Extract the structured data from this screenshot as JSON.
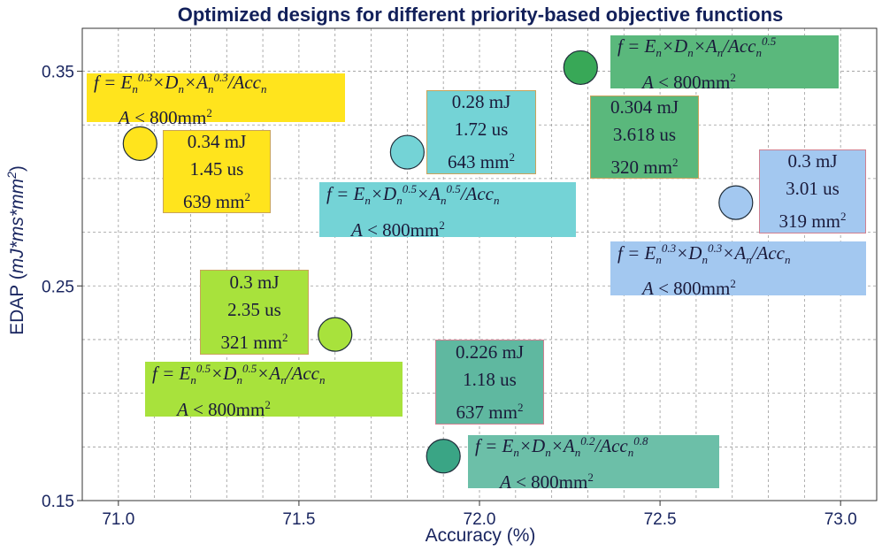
{
  "chart_data": {
    "type": "scatter",
    "title": "Optimized designs for different priority-based objective functions",
    "xlabel": "Accuracy (%)",
    "ylabel": "EDAP (mJ*ms*mm²)",
    "ylabel_prefix": "EDAP (",
    "ylabel_units": "mJ*ms*mm",
    "ylabel_sup": "2",
    "ylabel_suffix": ")",
    "xlim": [
      70.9,
      73.1
    ],
    "ylim": [
      0.15,
      0.37
    ],
    "xticks": [
      71.0,
      71.5,
      72.0,
      72.5,
      73.0
    ],
    "xtick_labels": [
      "71.0",
      "71.5",
      "72.0",
      "72.5",
      "73.0"
    ],
    "yticks": [
      0.15,
      0.25,
      0.35
    ],
    "ytick_labels": [
      "0.15",
      "0.25",
      "0.35"
    ],
    "grid": true,
    "constraint_label": "A < 800mm",
    "constraint_sup": "2",
    "points": [
      {
        "x": 71.06,
        "y": 0.3163,
        "color": "#ffe41d",
        "energy": "0.34 mJ",
        "latency": "1.45 us",
        "area": "639 mm",
        "objective": "f = En^0.3 × Dn × An^0.3 / Accn"
      },
      {
        "x": 71.8,
        "y": 0.3123,
        "color": "#74d3d6",
        "energy": "0.28 mJ",
        "latency": "1.72 us",
        "area": "643 mm",
        "objective": "f = En × Dn^0.5 × An^0.5 / Accn"
      },
      {
        "x": 72.28,
        "y": 0.3517,
        "color": "#38a857",
        "energy": "0.304 mJ",
        "latency": "3.618 us",
        "area": "320 mm",
        "objective": "f = En × Dn × An / Accn^0.5"
      },
      {
        "x": 72.71,
        "y": 0.2888,
        "color": "#a3c8f0",
        "energy": "0.3 mJ",
        "latency": "3.01 us",
        "area": "319 mm",
        "objective": "f = En^0.3 × Dn^0.3 × An / Accn"
      },
      {
        "x": 71.6,
        "y": 0.2274,
        "color": "#a8e23c",
        "energy": "0.3 mJ",
        "latency": "2.35 us",
        "area": "321 mm",
        "objective": "f = En^0.5 × Dn^0.5 × An / Accn"
      },
      {
        "x": 71.9,
        "y": 0.1707,
        "color": "#3aa585",
        "energy": "0.226 mJ",
        "latency": "1.18 us",
        "area": "637 mm",
        "objective": "f = En × Dn × An^0.2 / Accn^0.8"
      }
    ]
  },
  "colors": {
    "title": "#12205a",
    "axis_text": "#1a2660",
    "grid": "#9a9a9a"
  }
}
